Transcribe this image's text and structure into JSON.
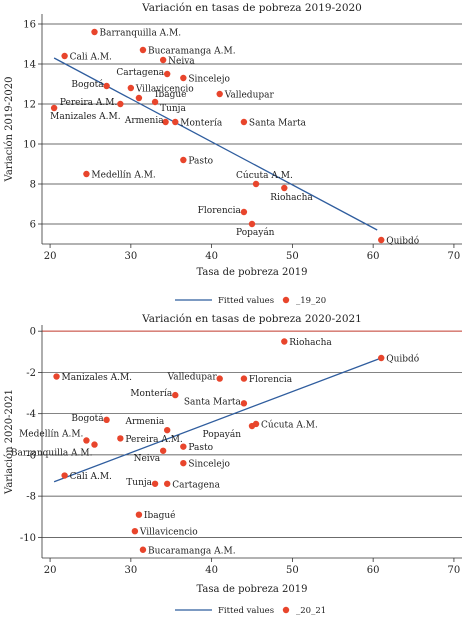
{
  "chart_data": [
    {
      "type": "scatter",
      "title": "Variación en tasas de pobreza 2019-2020",
      "xlabel": "Tasa de pobreza 2019",
      "ylabel": "Variación 2019-2020",
      "xlim": [
        19,
        71
      ],
      "ylim": [
        5,
        16.5
      ],
      "xticks": [
        20,
        30,
        40,
        50,
        60,
        70
      ],
      "yticks": [
        6,
        8,
        10,
        12,
        14,
        16
      ],
      "grid": true,
      "legend_position": "bottom",
      "legend": {
        "line": "Fitted values",
        "marker": "_19_20"
      },
      "colors": {
        "points": "#e8452c",
        "fit": "#2f5d9e",
        "grid": "#3a3a3a"
      },
      "fit_line": {
        "x": [
          20.5,
          60.5
        ],
        "y": [
          14.3,
          5.7
        ]
      },
      "points": [
        {
          "label": "Barranquilla A.M.",
          "x": 25.5,
          "y": 15.6
        },
        {
          "label": "Bucaramanga A.M.",
          "x": 31.5,
          "y": 14.7
        },
        {
          "label": "Cali A.M.",
          "x": 21.8,
          "y": 14.4
        },
        {
          "label": "Neiva",
          "x": 34.0,
          "y": 14.2
        },
        {
          "label": "Cartagena",
          "x": 34.5,
          "y": 13.5
        },
        {
          "label": "Sincelejo",
          "x": 36.5,
          "y": 13.3
        },
        {
          "label": "Bogotá",
          "x": 27.0,
          "y": 12.9
        },
        {
          "label": "Villavicencio",
          "x": 30.0,
          "y": 12.8
        },
        {
          "label": "Valledupar",
          "x": 41.0,
          "y": 12.5
        },
        {
          "label": "Pereira A.M.",
          "x": 28.7,
          "y": 12.0
        },
        {
          "label": "Ibagué",
          "x": 31.0,
          "y": 12.3
        },
        {
          "label": "Tunja",
          "x": 33.0,
          "y": 12.1
        },
        {
          "label": "Manizales A.M.",
          "x": 20.5,
          "y": 11.8
        },
        {
          "label": "Armenia",
          "x": 34.3,
          "y": 11.1
        },
        {
          "label": "Montería",
          "x": 35.5,
          "y": 11.1
        },
        {
          "label": "Santa Marta",
          "x": 44.0,
          "y": 11.1
        },
        {
          "label": "Pasto",
          "x": 36.5,
          "y": 9.2
        },
        {
          "label": "Medellín A.M.",
          "x": 24.5,
          "y": 8.5
        },
        {
          "label": "Cúcuta A.M.",
          "x": 45.5,
          "y": 8.0
        },
        {
          "label": "Riohacha",
          "x": 49.0,
          "y": 7.8
        },
        {
          "label": "Florencia",
          "x": 44.0,
          "y": 6.6
        },
        {
          "label": "Popayán",
          "x": 45.0,
          "y": 6.0
        },
        {
          "label": "Quibdó",
          "x": 61.0,
          "y": 5.2
        }
      ]
    },
    {
      "type": "scatter",
      "title": "Variación en tasas de pobreza 2020-2021",
      "xlabel": "Tasa de pobreza 2019",
      "ylabel": "Variación 2020-2021",
      "xlim": [
        19,
        71
      ],
      "ylim": [
        -11,
        0.3
      ],
      "xticks": [
        20,
        30,
        40,
        50,
        60,
        70
      ],
      "yticks": [
        0,
        -2,
        -4,
        -6,
        -8,
        -10
      ],
      "grid": true,
      "zero_line_color": "#c0392b",
      "legend_position": "bottom",
      "legend": {
        "line": "Fitted values",
        "marker": "_20_21"
      },
      "colors": {
        "points": "#e8452c",
        "fit": "#2f5d9e",
        "grid": "#3a3a3a"
      },
      "fit_line": {
        "x": [
          20.5,
          61.0
        ],
        "y": [
          -7.3,
          -1.3
        ]
      },
      "points": [
        {
          "label": "Riohacha",
          "x": 49.0,
          "y": -0.5
        },
        {
          "label": "Quibdó",
          "x": 61.0,
          "y": -1.3
        },
        {
          "label": "Manizales A.M.",
          "x": 20.8,
          "y": -2.2
        },
        {
          "label": "Valledupar",
          "x": 41.0,
          "y": -2.3
        },
        {
          "label": "Florencia",
          "x": 44.0,
          "y": -2.3
        },
        {
          "label": "Montería",
          "x": 35.5,
          "y": -3.1
        },
        {
          "label": "Santa Marta",
          "x": 44.0,
          "y": -3.5
        },
        {
          "label": "Bogotá",
          "x": 27.0,
          "y": -4.3
        },
        {
          "label": "Armenia",
          "x": 34.5,
          "y": -4.8
        },
        {
          "label": "Cúcuta A.M.",
          "x": 45.5,
          "y": -4.5
        },
        {
          "label": "Popayán",
          "x": 45.0,
          "y": -4.6
        },
        {
          "label": "Medellín A.M.",
          "x": 24.5,
          "y": -5.3
        },
        {
          "label": "Pereira A.M.",
          "x": 28.7,
          "y": -5.2
        },
        {
          "label": "Barranquilla A.M.",
          "x": 25.5,
          "y": -5.5
        },
        {
          "label": "Pasto",
          "x": 36.5,
          "y": -5.6
        },
        {
          "label": "Neiva",
          "x": 34.0,
          "y": -5.8
        },
        {
          "label": "Sincelejo",
          "x": 36.5,
          "y": -6.4
        },
        {
          "label": "Cali A.M.",
          "x": 21.8,
          "y": -7.0
        },
        {
          "label": "Tunja",
          "x": 33.0,
          "y": -7.4
        },
        {
          "label": "Cartagena",
          "x": 34.5,
          "y": -7.4
        },
        {
          "label": "Ibagué",
          "x": 31.0,
          "y": -8.9
        },
        {
          "label": "Villavicencio",
          "x": 30.5,
          "y": -9.7
        },
        {
          "label": "Bucaramanga A.M.",
          "x": 31.5,
          "y": -10.6
        }
      ]
    }
  ]
}
